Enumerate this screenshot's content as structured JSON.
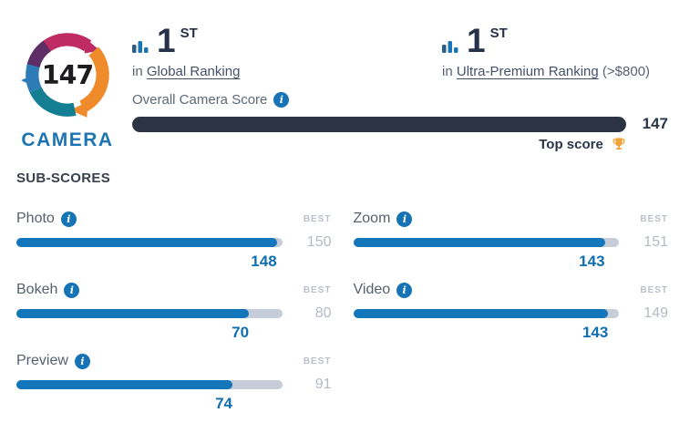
{
  "logo": {
    "score": "147",
    "label": "CAMERA"
  },
  "icons": {
    "info_glyph": "i"
  },
  "rankings": [
    {
      "rank": "1",
      "ordinal": "ST",
      "prefix": "in",
      "link_text": "Global Ranking",
      "note": ""
    },
    {
      "rank": "1",
      "ordinal": "ST",
      "prefix": "in",
      "link_text": "Ultra-Premium Ranking",
      "note": "(>$800)"
    }
  ],
  "overall_score": {
    "label": "Overall Camera Score",
    "value": "147",
    "fill_pct": 100,
    "top_score_label": "Top score"
  },
  "subscores": {
    "heading": "SUB-SCORES",
    "best_label": "BEST",
    "items": [
      {
        "label": "Photo",
        "value": "148",
        "best": "150",
        "fill_pct": 98
      },
      {
        "label": "Zoom",
        "value": "143",
        "best": "151",
        "fill_pct": 94.7
      },
      {
        "label": "Bokeh",
        "value": "70",
        "best": "80",
        "fill_pct": 87.5
      },
      {
        "label": "Video",
        "value": "143",
        "best": "149",
        "fill_pct": 96
      },
      {
        "label": "Preview",
        "value": "74",
        "best": "91",
        "fill_pct": 81.3
      }
    ]
  },
  "colors": {
    "bar_fill_blue": "#1376ba",
    "bar_track_gray": "#c7ccd9",
    "overall_bar_navy": "#2c3345",
    "score_value_blue": "#0f6fb0",
    "info_icon_blue": "#1673b5",
    "camera_label_blue": "#1e73b2",
    "trophy_gold": "#f0a33c",
    "logo_magenta": "#bf2c64",
    "logo_orange": "#ef8b2b",
    "logo_teal": "#147e92",
    "logo_blue": "#2d7cb8",
    "logo_purple": "#5e2d66"
  }
}
